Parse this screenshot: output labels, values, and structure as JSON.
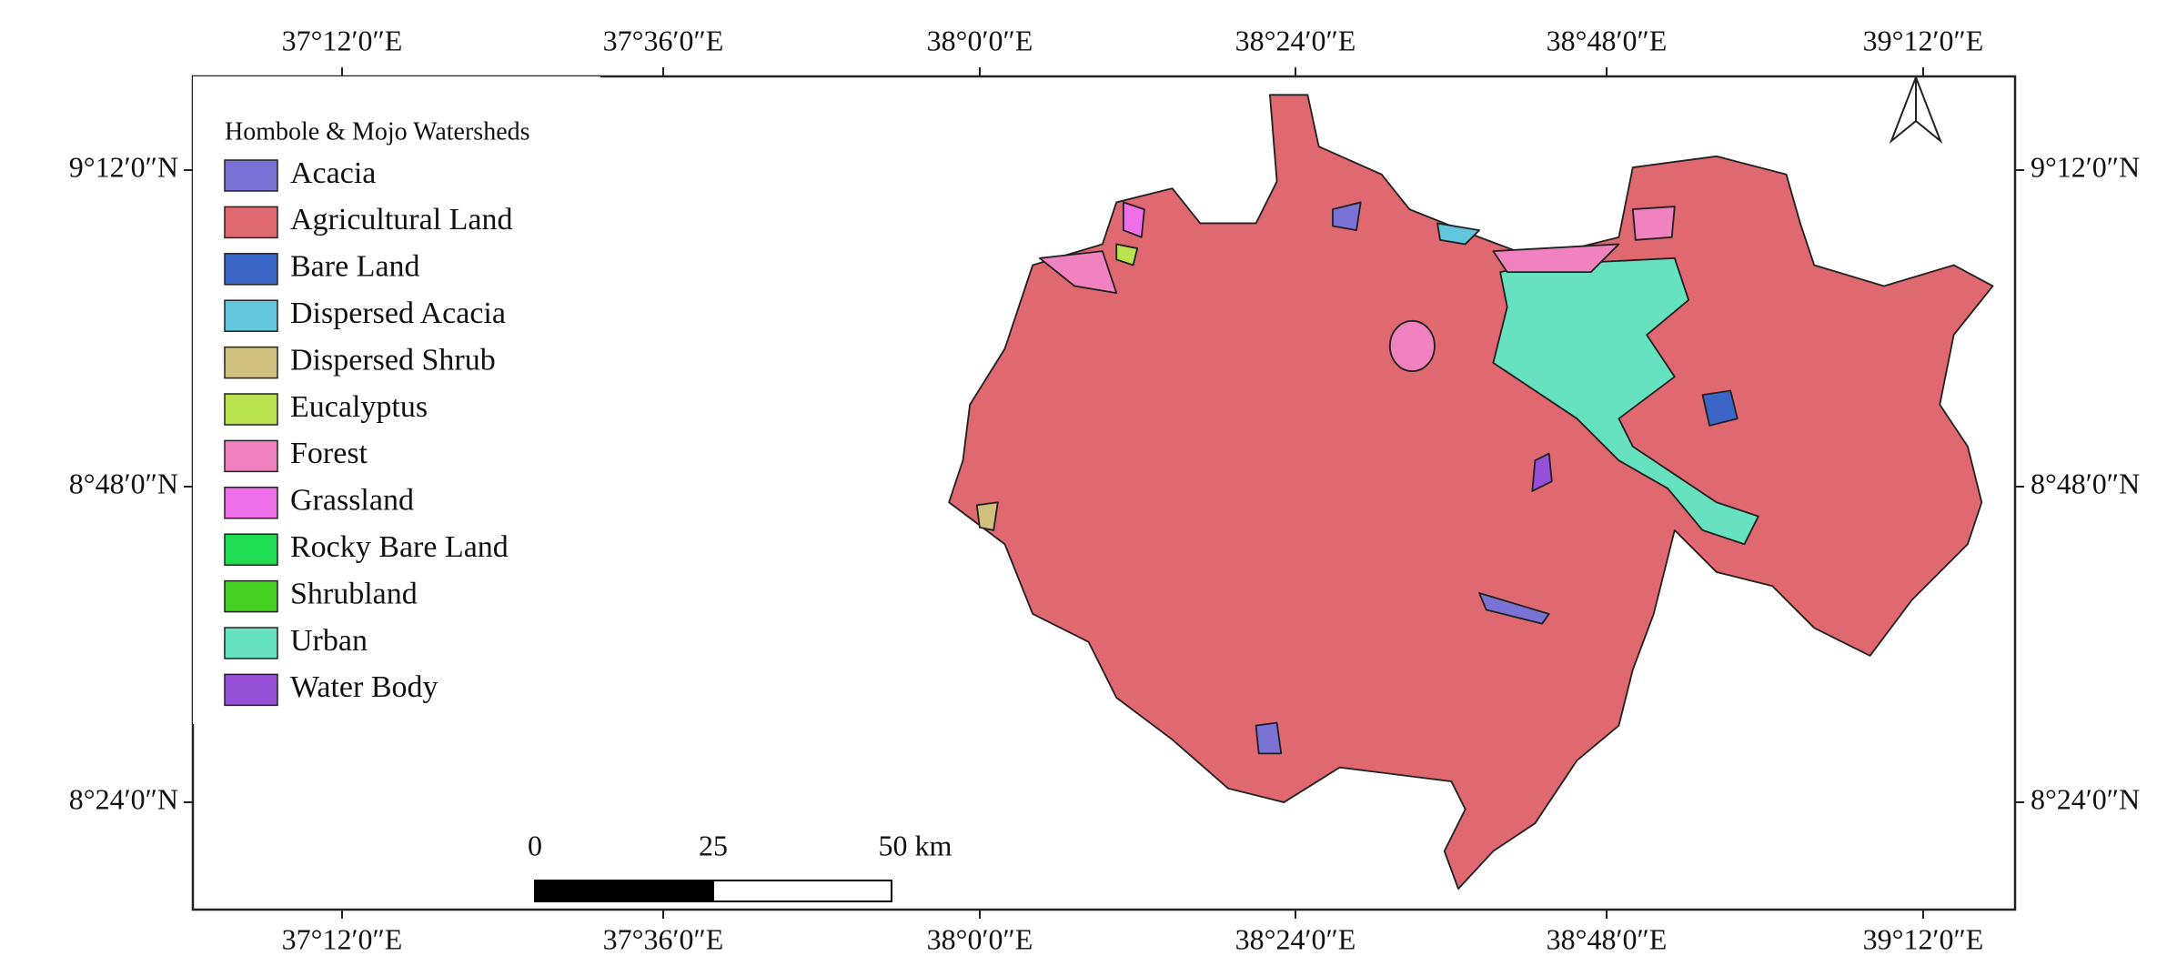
{
  "legend": {
    "title": "Hombole & Mojo Watersheds",
    "items": [
      {
        "label": "Acacia",
        "color": "#7b72d6"
      },
      {
        "label": "Agricultural Land",
        "color": "#e06870"
      },
      {
        "label": "Bare Land",
        "color": "#3b66c8"
      },
      {
        "label": "Dispersed Acacia",
        "color": "#62c6dd"
      },
      {
        "label": "Dispersed Shrub",
        "color": "#cfc07e"
      },
      {
        "label": "Eucalyptus",
        "color": "#b9e34e"
      },
      {
        "label": "Forest",
        "color": "#ef82bf"
      },
      {
        "label": "Grassland",
        "color": "#ee6fe8"
      },
      {
        "label": "Rocky Bare Land",
        "color": "#1fdc52"
      },
      {
        "label": "Shrubland",
        "color": "#45cf22"
      },
      {
        "label": "Urban",
        "color": "#67e2c0"
      },
      {
        "label": "Water Body",
        "color": "#9650d8"
      }
    ]
  },
  "graticule": {
    "longitudes": [
      "37°12′0″E",
      "37°36′0″E",
      "38°0′0″E",
      "38°24′0″E",
      "38°48′0″E",
      "39°12′0″E"
    ],
    "latitudes": [
      "9°12′0″N",
      "8°48′0″N",
      "8°24′0″N"
    ]
  },
  "scale_bar": {
    "labels": [
      "0",
      "25",
      "50 km"
    ]
  }
}
